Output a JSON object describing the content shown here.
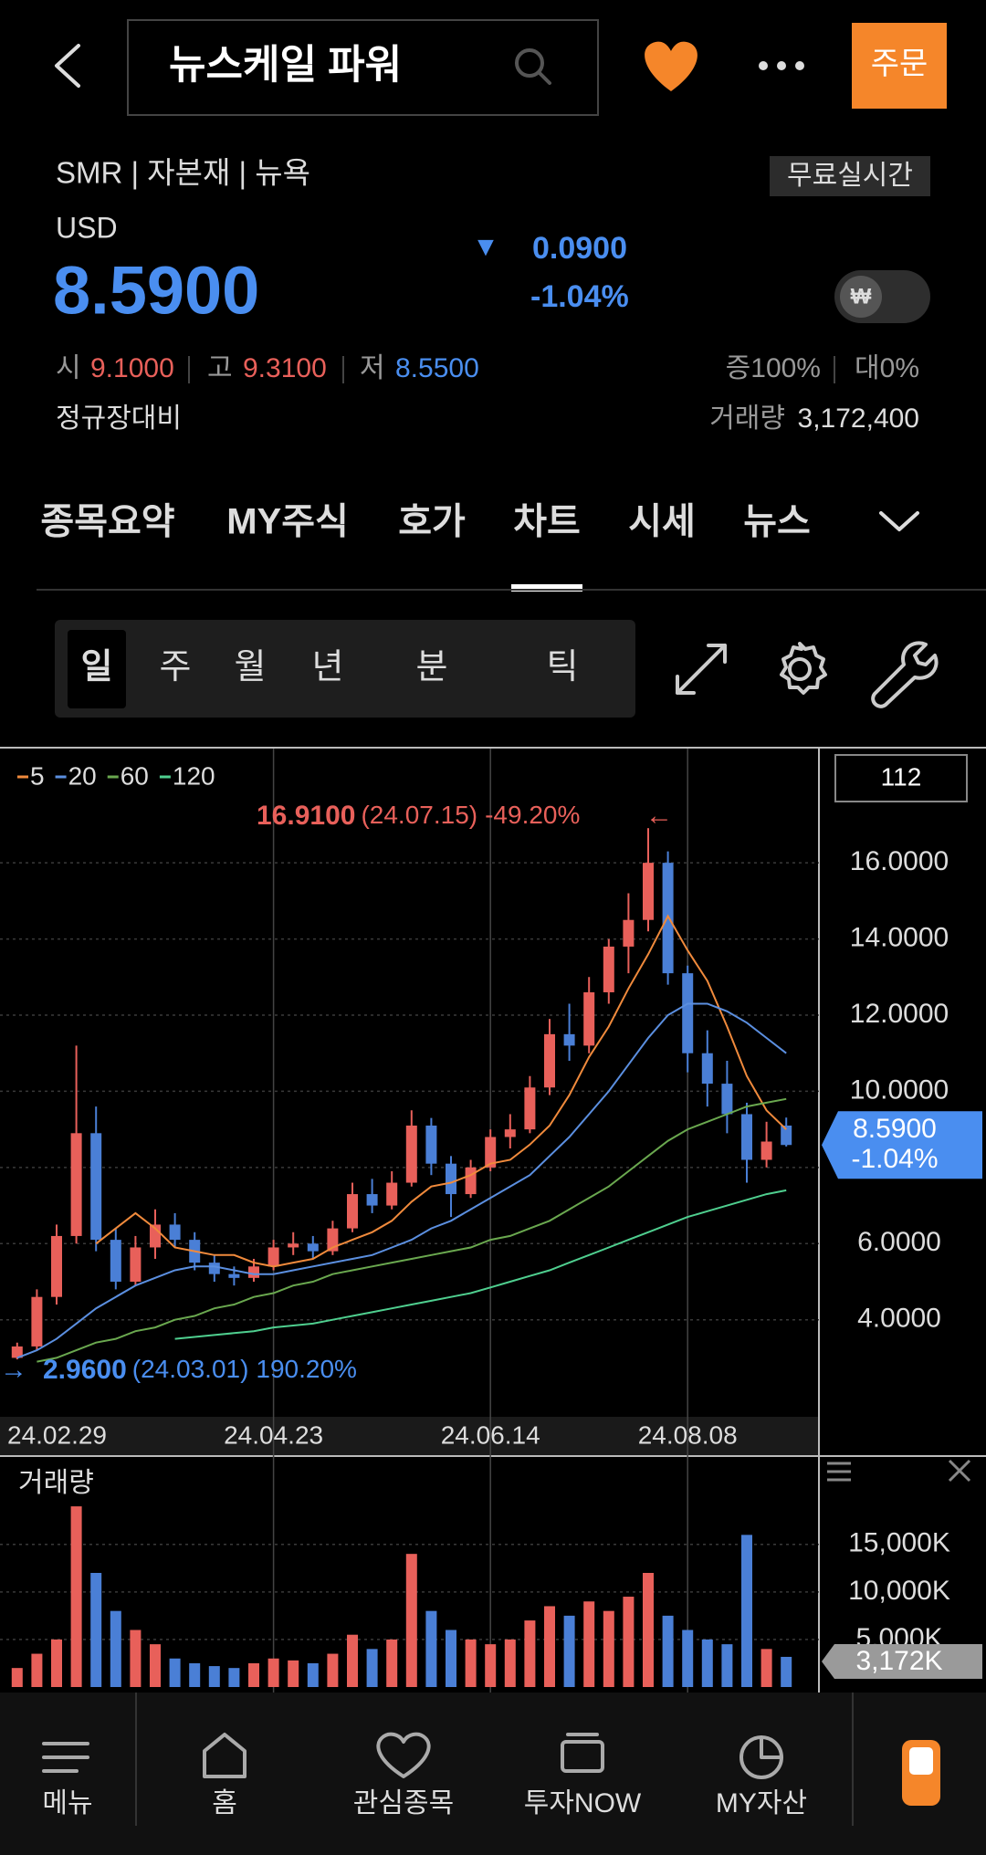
{
  "header": {
    "search": "뉴스케일 파워",
    "order": "주문"
  },
  "stock": {
    "meta": "SMR | 자본재 | 뉴욕",
    "realtime": "무료실시간",
    "currency": "USD",
    "price": "8.5900",
    "arrow": "▼",
    "change": "0.0900",
    "change_pct": "-1.04%",
    "won": "₩",
    "open_label": "시",
    "open": "9.1000",
    "high_label": "고",
    "high": "9.3100",
    "low_label": "저",
    "low": "8.5500",
    "ratio_up": "증100%",
    "ratio_down": "대0%",
    "basis": "정규장대비",
    "volume_label": "거래량",
    "volume": "3,172,400"
  },
  "tabs": [
    "종목요약",
    "MY주식",
    "호가",
    "차트",
    "시세",
    "뉴스"
  ],
  "active_tab": 3,
  "periods": [
    "일",
    "주",
    "월",
    "년",
    "분",
    "틱"
  ],
  "active_period": 0,
  "nav": [
    "메뉴",
    "홈",
    "관심종목",
    "투자NOW",
    "MY자산"
  ],
  "chart_data": {
    "type": "candlestick",
    "count_label": "112",
    "up_color": "#e8605a",
    "down_color": "#4a7fd6",
    "candles": [
      [
        3.0,
        3.4,
        2.96,
        3.3
      ],
      [
        3.3,
        4.8,
        3.2,
        4.6
      ],
      [
        4.6,
        6.5,
        4.4,
        6.2
      ],
      [
        6.2,
        11.2,
        6.0,
        8.9
      ],
      [
        8.9,
        9.6,
        5.8,
        6.1
      ],
      [
        6.1,
        6.4,
        4.8,
        5.0
      ],
      [
        5.0,
        6.2,
        4.9,
        5.9
      ],
      [
        5.9,
        6.9,
        5.6,
        6.5
      ],
      [
        6.5,
        6.8,
        5.9,
        6.1
      ],
      [
        6.1,
        6.3,
        5.3,
        5.5
      ],
      [
        5.5,
        5.7,
        5.0,
        5.2
      ],
      [
        5.2,
        5.4,
        4.9,
        5.1
      ],
      [
        5.1,
        5.6,
        5.0,
        5.4
      ],
      [
        5.4,
        6.1,
        5.3,
        5.9
      ],
      [
        5.9,
        6.3,
        5.7,
        6.0
      ],
      [
        6.0,
        6.2,
        5.6,
        5.8
      ],
      [
        5.8,
        6.6,
        5.7,
        6.4
      ],
      [
        6.4,
        7.6,
        6.3,
        7.3
      ],
      [
        7.3,
        7.7,
        6.8,
        7.0
      ],
      [
        7.0,
        7.9,
        6.9,
        7.6
      ],
      [
        7.6,
        9.5,
        7.5,
        9.1
      ],
      [
        9.1,
        9.3,
        7.8,
        8.1
      ],
      [
        8.1,
        8.3,
        6.7,
        7.3
      ],
      [
        7.3,
        8.2,
        7.2,
        8.0
      ],
      [
        8.0,
        9.0,
        7.9,
        8.8
      ],
      [
        8.8,
        9.4,
        8.5,
        9.0
      ],
      [
        9.0,
        10.4,
        8.9,
        10.1
      ],
      [
        10.1,
        11.9,
        9.9,
        11.5
      ],
      [
        11.5,
        12.3,
        10.8,
        11.2
      ],
      [
        11.2,
        13.0,
        11.0,
        12.6
      ],
      [
        12.6,
        14.0,
        12.3,
        13.8
      ],
      [
        13.8,
        15.2,
        13.1,
        14.5
      ],
      [
        14.5,
        16.91,
        14.2,
        16.0
      ],
      [
        16.0,
        16.3,
        12.8,
        13.1
      ],
      [
        13.1,
        13.3,
        10.5,
        11.0
      ],
      [
        11.0,
        11.6,
        9.6,
        10.2
      ],
      [
        10.2,
        10.8,
        8.9,
        9.4
      ],
      [
        9.4,
        9.7,
        7.6,
        8.2
      ],
      [
        8.2,
        9.2,
        8.0,
        8.68
      ],
      [
        9.1,
        9.31,
        8.55,
        8.59
      ]
    ],
    "series": [
      {
        "name": "5",
        "color": "#f08a3c",
        "values": [
          null,
          null,
          null,
          null,
          6.0,
          6.4,
          6.8,
          6.4,
          5.9,
          5.8,
          5.7,
          5.7,
          5.5,
          5.4,
          5.5,
          5.6,
          5.9,
          6.1,
          6.3,
          6.6,
          7.1,
          7.5,
          7.6,
          7.8,
          8.1,
          8.2,
          8.6,
          9.1,
          9.9,
          10.9,
          11.7,
          12.7,
          13.6,
          14.6,
          13.7,
          12.9,
          11.7,
          10.4,
          9.5,
          9.0
        ]
      },
      {
        "name": "20",
        "color": "#5b8fe0",
        "values": [
          3.0,
          3.2,
          3.5,
          3.9,
          4.3,
          4.6,
          4.9,
          5.1,
          5.3,
          5.4,
          5.4,
          5.3,
          5.2,
          5.2,
          5.3,
          5.4,
          5.5,
          5.6,
          5.7,
          5.9,
          6.1,
          6.4,
          6.6,
          6.9,
          7.2,
          7.5,
          7.8,
          8.3,
          8.8,
          9.4,
          10.0,
          10.7,
          11.4,
          12.0,
          12.3,
          12.3,
          12.1,
          11.8,
          11.4,
          11.0
        ]
      },
      {
        "name": "60",
        "color": "#6aa84f",
        "values": [
          null,
          2.9,
          3.0,
          3.2,
          3.4,
          3.5,
          3.7,
          3.8,
          4.0,
          4.1,
          4.3,
          4.4,
          4.6,
          4.7,
          4.9,
          5.0,
          5.2,
          5.3,
          5.4,
          5.5,
          5.6,
          5.7,
          5.8,
          5.9,
          6.1,
          6.2,
          6.4,
          6.6,
          6.9,
          7.2,
          7.5,
          7.9,
          8.3,
          8.7,
          9.0,
          9.2,
          9.4,
          9.6,
          9.7,
          9.8
        ]
      },
      {
        "name": "120",
        "color": "#4fcf8f",
        "values": [
          null,
          null,
          null,
          null,
          null,
          null,
          null,
          null,
          3.5,
          3.55,
          3.6,
          3.65,
          3.7,
          3.8,
          3.85,
          3.9,
          4.0,
          4.1,
          4.2,
          4.3,
          4.4,
          4.5,
          4.6,
          4.7,
          4.85,
          5.0,
          5.15,
          5.3,
          5.5,
          5.7,
          5.9,
          6.1,
          6.3,
          6.5,
          6.7,
          6.85,
          7.0,
          7.15,
          7.3,
          7.4
        ]
      }
    ],
    "ylim": [
      1.5,
      19
    ],
    "yticks": [
      {
        "value": 4,
        "label": "4.0000"
      },
      {
        "value": 6,
        "label": "6.0000"
      },
      {
        "value": 8,
        "label": "8.0000"
      },
      {
        "value": 10,
        "label": "10.0000"
      },
      {
        "value": 12,
        "label": "12.0000"
      },
      {
        "value": 14,
        "label": "14.0000"
      },
      {
        "value": 16,
        "label": "16.0000"
      }
    ],
    "xticks": [
      {
        "value": 0,
        "label": "24.02.29"
      },
      {
        "value": 13,
        "label": "24.04.23"
      },
      {
        "value": 24,
        "label": "24.06.14"
      },
      {
        "value": 34,
        "label": "24.08.08"
      }
    ],
    "high_note": {
      "price": "16.9100",
      "date": "(24.07.15)",
      "pct": "-49.20%",
      "arrow": "←"
    },
    "low_note": {
      "price": "2.9600",
      "date": "(24.03.01)",
      "pct": "190.20%",
      "arrow": "→"
    },
    "volume": {
      "title": "거래량",
      "values": [
        2000,
        3500,
        5000,
        19000,
        12000,
        8000,
        6000,
        4500,
        3000,
        2500,
        2200,
        2000,
        2500,
        3000,
        2800,
        2500,
        3500,
        5500,
        4000,
        5000,
        14000,
        8000,
        6000,
        5000,
        4500,
        5000,
        7000,
        8500,
        7500,
        9000,
        8000,
        9500,
        12000,
        7500,
        6000,
        5000,
        4500,
        16000,
        4000,
        3172
      ],
      "ylim": [
        0,
        24000
      ],
      "yticks": [
        {
          "value": 5000,
          "label": "5,000K"
        },
        {
          "value": 10000,
          "label": "10,000K"
        },
        {
          "value": 15000,
          "label": "15,000K"
        }
      ],
      "current_label": "3,172K"
    }
  }
}
